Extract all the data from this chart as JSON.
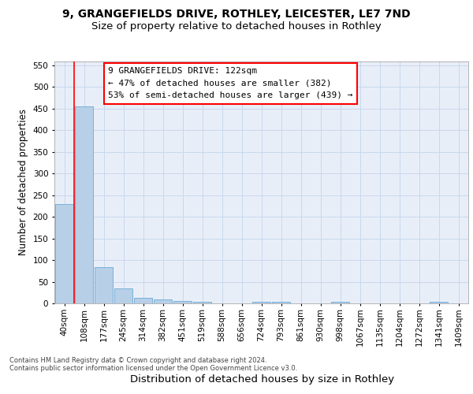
{
  "title1": "9, GRANGEFIELDS DRIVE, ROTHLEY, LEICESTER, LE7 7ND",
  "title2": "Size of property relative to detached houses in Rothley",
  "xlabel": "Distribution of detached houses by size in Rothley",
  "ylabel": "Number of detached properties",
  "categories": [
    "40sqm",
    "108sqm",
    "177sqm",
    "245sqm",
    "314sqm",
    "382sqm",
    "451sqm",
    "519sqm",
    "588sqm",
    "656sqm",
    "724sqm",
    "793sqm",
    "861sqm",
    "930sqm",
    "998sqm",
    "1067sqm",
    "1135sqm",
    "1204sqm",
    "1272sqm",
    "1341sqm",
    "1409sqm"
  ],
  "values": [
    230,
    455,
    83,
    35,
    13,
    9,
    6,
    3,
    0,
    0,
    4,
    4,
    0,
    0,
    3,
    0,
    0,
    0,
    0,
    3,
    0
  ],
  "bar_color": "#b8cfe8",
  "bar_edge_color": "#6aaad4",
  "grid_color": "#c8d8ec",
  "background_color": "#e8eef8",
  "red_line_x": 0.5,
  "annotation_text": "9 GRANGEFIELDS DRIVE: 122sqm\n← 47% of detached houses are smaller (382)\n53% of semi-detached houses are larger (439) →",
  "ylim": [
    0,
    560
  ],
  "yticks": [
    0,
    50,
    100,
    150,
    200,
    250,
    300,
    350,
    400,
    450,
    500,
    550
  ],
  "footer1": "Contains HM Land Registry data © Crown copyright and database right 2024.",
  "footer2": "Contains public sector information licensed under the Open Government Licence v3.0.",
  "title1_fontsize": 10,
  "title2_fontsize": 9.5,
  "ylabel_fontsize": 8.5,
  "xlabel_fontsize": 9.5,
  "tick_fontsize": 7.5,
  "annotation_fontsize": 8,
  "footer_fontsize": 6
}
